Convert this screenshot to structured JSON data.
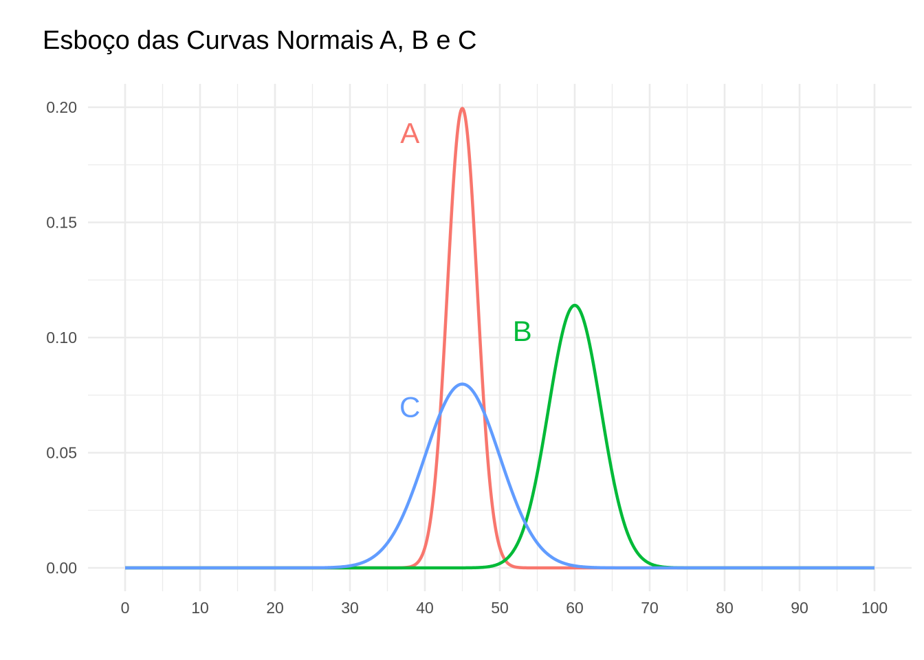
{
  "chart_data": {
    "type": "line",
    "title": "Esboço das Curvas Normais A, B e C",
    "xlabel": "",
    "ylabel": "",
    "xlim": [
      0,
      100
    ],
    "ylim": [
      0,
      0.2
    ],
    "x_ticks": [
      "0",
      "10",
      "20",
      "30",
      "40",
      "50",
      "60",
      "70",
      "80",
      "90",
      "100"
    ],
    "y_ticks": [
      "0.00",
      "0.05",
      "0.10",
      "0.15",
      "0.20"
    ],
    "grid": true,
    "legend": "none",
    "series": [
      {
        "name": "A",
        "color": "#F8766D",
        "distribution": "normal",
        "mean": 45,
        "sd": 2,
        "peak": 0.1995,
        "label_position": {
          "x": 38,
          "y": 0.189
        }
      },
      {
        "name": "B",
        "color": "#00BA38",
        "distribution": "normal",
        "mean": 60,
        "sd": 3.5,
        "peak": 0.114,
        "label_position": {
          "x": 53,
          "y": 0.103
        }
      },
      {
        "name": "C",
        "color": "#619CFF",
        "distribution": "normal",
        "mean": 45,
        "sd": 5,
        "peak": 0.0798,
        "label_position": {
          "x": 38,
          "y": 0.07
        }
      }
    ]
  }
}
